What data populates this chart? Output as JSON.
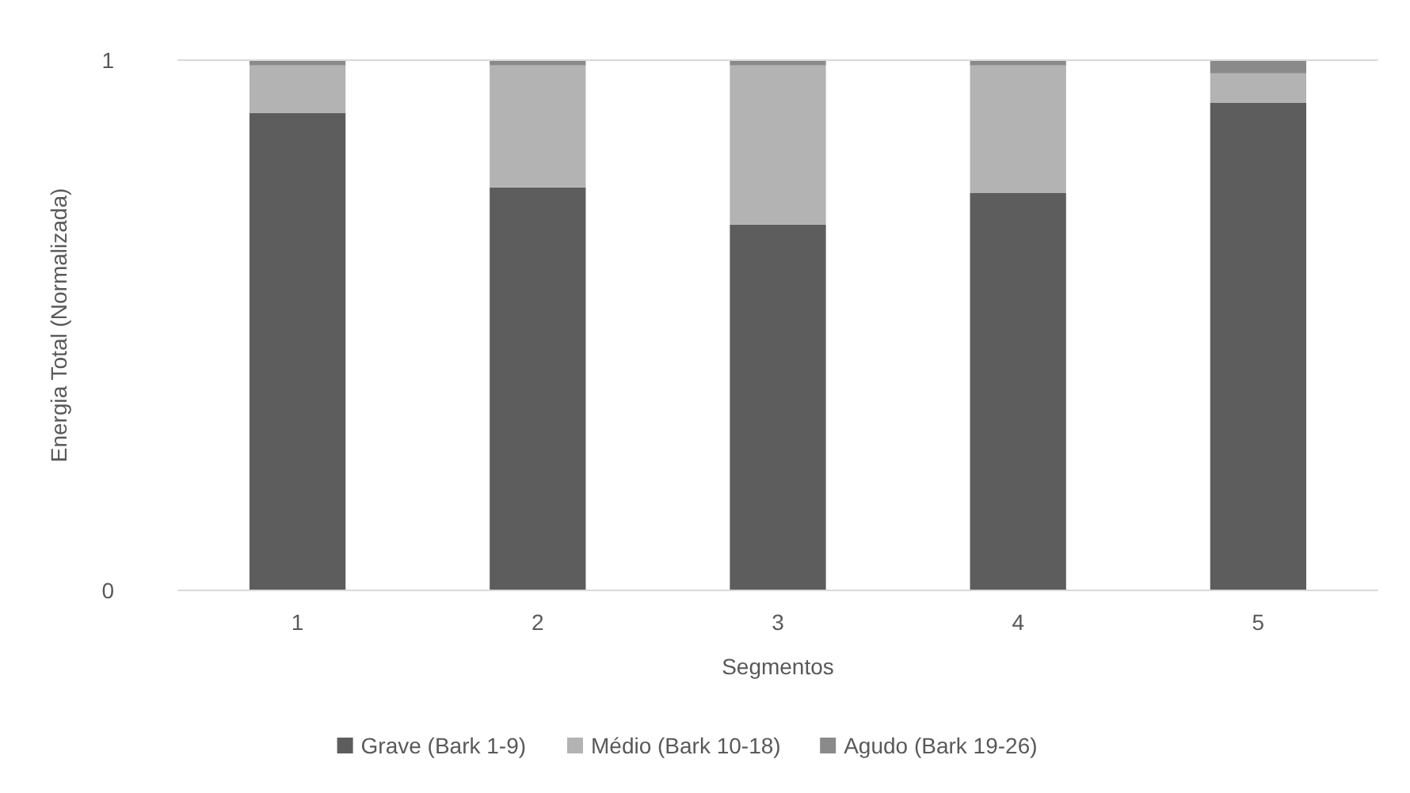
{
  "chart_data": {
    "type": "bar",
    "stacked": true,
    "xlabel": "Segmentos",
    "ylabel": "Energia Total (Normalizada)",
    "categories": [
      "1",
      "2",
      "3",
      "4",
      "5"
    ],
    "series": [
      {
        "name": "Grave (Bark 1-9)",
        "color": "#5d5d5d",
        "values": [
          0.9,
          0.76,
          0.69,
          0.75,
          0.92
        ]
      },
      {
        "name": "Médio (Bark 10-18)",
        "color": "#b3b3b3",
        "values": [
          0.09,
          0.23,
          0.3,
          0.24,
          0.055
        ]
      },
      {
        "name": "Agudo (Bark 19-26)",
        "color": "#8a8a8a",
        "values": [
          0.01,
          0.01,
          0.01,
          0.01,
          0.025
        ]
      }
    ],
    "ylim": [
      0,
      1
    ],
    "yticks": [
      0,
      1
    ],
    "legend": "bottom"
  }
}
